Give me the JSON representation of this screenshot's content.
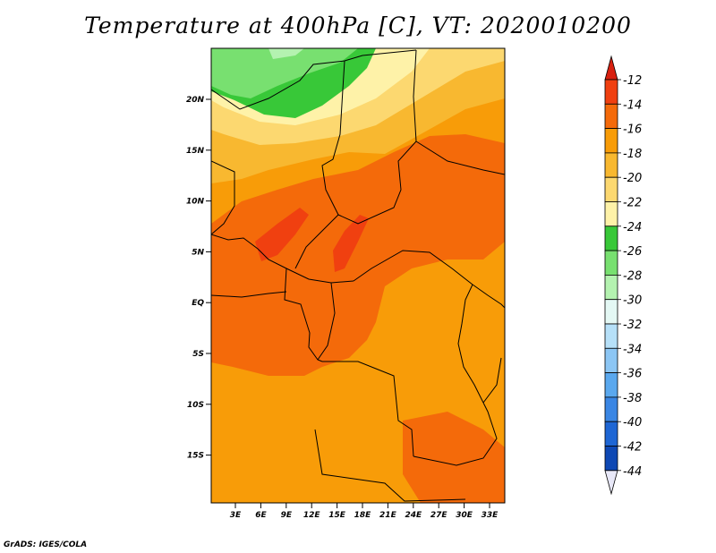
{
  "title": "Temperature at 400hPa [C], VT: 2020010200",
  "footer": "GrADS: IGES/COLA",
  "lat_labels": [
    "20N",
    "15N",
    "10N",
    "5N",
    "EQ",
    "5S",
    "10S",
    "15S"
  ],
  "lon_labels": [
    "3E",
    "6E",
    "9E",
    "12E",
    "15E",
    "18E",
    "21E",
    "24E",
    "27E",
    "30E",
    "33E"
  ],
  "colorbar": {
    "levels": [
      "-12",
      "-14",
      "-16",
      "-18",
      "-20",
      "-22",
      "-24",
      "-26",
      "-28",
      "-30",
      "-32",
      "-34",
      "-36",
      "-38",
      "-40",
      "-42",
      "-44"
    ],
    "colors": [
      "#f04010",
      "#f46a0a",
      "#f89c08",
      "#f8b830",
      "#fcd870",
      "#fef2a8",
      "#38c838",
      "#78e070",
      "#b4f2b0",
      "#e4f8f4",
      "#b6e0f8",
      "#8cc6f4",
      "#5aa8ee",
      "#3a86e4",
      "#1e66d4",
      "#0e48b4",
      "#08106a"
    ],
    "top_tip": "#d82010",
    "bottom_tip": "#e8e8f8"
  },
  "colors": {
    "c12": "#f04010",
    "c14": "#f46a0a",
    "c16": "#f89c08",
    "c18": "#f8b830",
    "c20": "#fcd870",
    "c22": "#fef2a8",
    "c24": "#38c838",
    "c26": "#78e070",
    "c28": "#b4f2b0"
  }
}
